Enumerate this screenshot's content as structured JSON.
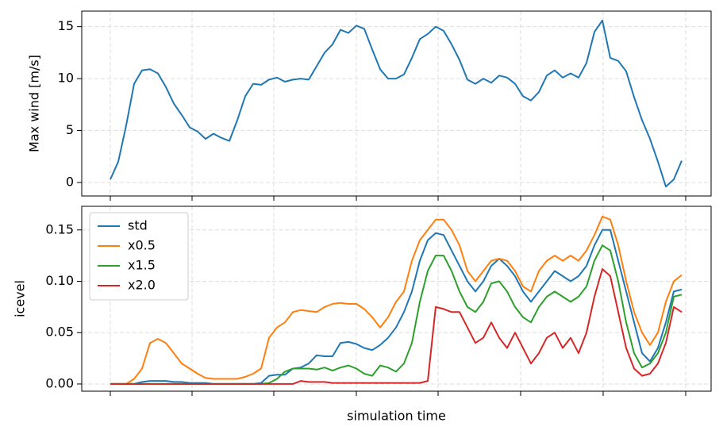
{
  "chart_data": [
    {
      "type": "line",
      "ylabel": "Max wind [m/s]",
      "categories": [
        null,
        null,
        null,
        null,
        null,
        null,
        null,
        null,
        null,
        null,
        null,
        null,
        null,
        null,
        null,
        null,
        null,
        null,
        null,
        null,
        null,
        null,
        null,
        null,
        null,
        null,
        null,
        null,
        null,
        null,
        null,
        null,
        null,
        null,
        null,
        null,
        null,
        null,
        null,
        null,
        null,
        null,
        null,
        null,
        null,
        null,
        null,
        null,
        null,
        null,
        null,
        null,
        null,
        null,
        null,
        null,
        null,
        null,
        null,
        null,
        null,
        null,
        null,
        null,
        null,
        null,
        null,
        null,
        null,
        null,
        null,
        null,
        null
      ],
      "series": [
        {
          "name": "Max wind",
          "color": "#1f77b4",
          "values": [
            0.3,
            2,
            5.5,
            9.5,
            10.8,
            10.9,
            10.5,
            9.2,
            7.6,
            6.5,
            5.3,
            4.9,
            4.2,
            4.7,
            4.3,
            4,
            6,
            8.3,
            9.5,
            9.4,
            9.9,
            10.1,
            9.7,
            9.9,
            10,
            9.9,
            11.2,
            12.5,
            13.3,
            14.7,
            14.4,
            15.1,
            14.8,
            12.8,
            10.9,
            10,
            10,
            10.4,
            12,
            13.8,
            14.3,
            15,
            14.6,
            13.3,
            11.8,
            9.9,
            9.5,
            10,
            9.6,
            10.3,
            10.1,
            9.5,
            8.3,
            7.9,
            8.7,
            10.3,
            10.8,
            10.1,
            10.5,
            10.1,
            11.5,
            14.5,
            15.6,
            12,
            11.7,
            10.7,
            8.2,
            6,
            4.2,
            2,
            -0.4,
            0.3,
            2.1
          ]
        }
      ],
      "ylim": [
        -1.3,
        16.5
      ],
      "yticks": [
        0,
        5,
        10,
        15
      ],
      "grid": true,
      "legend": false
    },
    {
      "type": "line",
      "ylabel": "icevel",
      "xlabel": "simulation time",
      "categories": [
        null,
        null,
        null,
        null,
        null,
        null,
        null,
        null,
        null,
        null,
        null,
        null,
        null,
        null,
        null,
        null,
        null,
        null,
        null,
        null,
        null,
        null,
        null,
        null,
        null,
        null,
        null,
        null,
        null,
        null,
        null,
        null,
        null,
        null,
        null,
        null,
        null,
        null,
        null,
        null,
        null,
        null,
        null,
        null,
        null,
        null,
        null,
        null,
        null,
        null,
        null,
        null,
        null,
        null,
        null,
        null,
        null,
        null,
        null,
        null,
        null,
        null,
        null,
        null,
        null,
        null,
        null,
        null,
        null,
        null,
        null,
        null,
        null
      ],
      "series": [
        {
          "name": "std",
          "color": "#1f77b4",
          "values": [
            0,
            0,
            0,
            0,
            0.002,
            0.003,
            0.003,
            0.003,
            0.002,
            0.002,
            0.001,
            0.001,
            0.001,
            0,
            0,
            0,
            0,
            0,
            0,
            0.001,
            0.008,
            0.009,
            0.009,
            0.015,
            0.016,
            0.02,
            0.028,
            0.027,
            0.027,
            0.04,
            0.041,
            0.039,
            0.035,
            0.033,
            0.038,
            0.045,
            0.055,
            0.07,
            0.09,
            0.12,
            0.14,
            0.147,
            0.145,
            0.13,
            0.115,
            0.1,
            0.09,
            0.1,
            0.115,
            0.122,
            0.115,
            0.105,
            0.09,
            0.08,
            0.09,
            0.1,
            0.11,
            0.105,
            0.1,
            0.105,
            0.115,
            0.135,
            0.15,
            0.15,
            0.12,
            0.09,
            0.06,
            0.03,
            0.022,
            0.035,
            0.06,
            0.09,
            0.092
          ]
        },
        {
          "name": "x0.5",
          "color": "#ff7f0e",
          "values": [
            0,
            0,
            0,
            0.005,
            0.015,
            0.04,
            0.044,
            0.04,
            0.03,
            0.02,
            0.015,
            0.01,
            0.006,
            0.005,
            0.005,
            0.005,
            0.005,
            0.007,
            0.01,
            0.015,
            0.045,
            0.055,
            0.06,
            0.07,
            0.072,
            0.071,
            0.07,
            0.075,
            0.078,
            0.079,
            0.078,
            0.078,
            0.073,
            0.065,
            0.055,
            0.065,
            0.08,
            0.09,
            0.12,
            0.14,
            0.15,
            0.16,
            0.16,
            0.15,
            0.135,
            0.11,
            0.1,
            0.11,
            0.12,
            0.122,
            0.12,
            0.11,
            0.095,
            0.09,
            0.11,
            0.12,
            0.125,
            0.12,
            0.125,
            0.12,
            0.13,
            0.145,
            0.163,
            0.16,
            0.135,
            0.1,
            0.07,
            0.05,
            0.038,
            0.05,
            0.08,
            0.1,
            0.106
          ]
        },
        {
          "name": "x1.5",
          "color": "#2ca02c",
          "values": [
            0,
            0,
            0,
            0,
            0,
            0,
            0,
            0,
            0,
            0,
            0,
            0,
            0,
            0,
            0,
            0,
            0,
            0,
            0,
            0,
            0.001,
            0.005,
            0.012,
            0.015,
            0.015,
            0.015,
            0.014,
            0.016,
            0.013,
            0.016,
            0.018,
            0.015,
            0.01,
            0.008,
            0.018,
            0.016,
            0.012,
            0.02,
            0.04,
            0.08,
            0.11,
            0.125,
            0.125,
            0.11,
            0.09,
            0.075,
            0.07,
            0.08,
            0.098,
            0.1,
            0.09,
            0.075,
            0.065,
            0.06,
            0.075,
            0.085,
            0.09,
            0.085,
            0.08,
            0.085,
            0.095,
            0.12,
            0.135,
            0.13,
            0.1,
            0.06,
            0.03,
            0.016,
            0.02,
            0.03,
            0.05,
            0.085,
            0.087
          ]
        },
        {
          "name": "x2.0",
          "color": "#d62728",
          "values": [
            0,
            0,
            0,
            0,
            0,
            0,
            0,
            0,
            0,
            0,
            0,
            0,
            0,
            0,
            0,
            0,
            0,
            0,
            0,
            0,
            0,
            0,
            0,
            0,
            0.003,
            0.002,
            0.002,
            0.002,
            0.001,
            0.001,
            0.001,
            0.001,
            0.001,
            0.001,
            0.001,
            0.001,
            0.001,
            0.001,
            0.001,
            0.001,
            0.003,
            0.075,
            0.073,
            0.07,
            0.07,
            0.055,
            0.04,
            0.045,
            0.06,
            0.045,
            0.035,
            0.05,
            0.035,
            0.02,
            0.03,
            0.045,
            0.05,
            0.035,
            0.045,
            0.03,
            0.05,
            0.085,
            0.112,
            0.105,
            0.07,
            0.035,
            0.015,
            0.008,
            0.01,
            0.02,
            0.04,
            0.075,
            0.07
          ]
        }
      ],
      "ylim": [
        -0.007,
        0.173
      ],
      "yticks": [
        {
          "value": 0,
          "label": "0.00"
        },
        {
          "value": 0.05,
          "label": "0.05"
        },
        {
          "value": 0.1,
          "label": "0.10"
        },
        {
          "value": 0.15,
          "label": "0.15"
        }
      ],
      "grid": true,
      "legend": "upper left"
    }
  ]
}
